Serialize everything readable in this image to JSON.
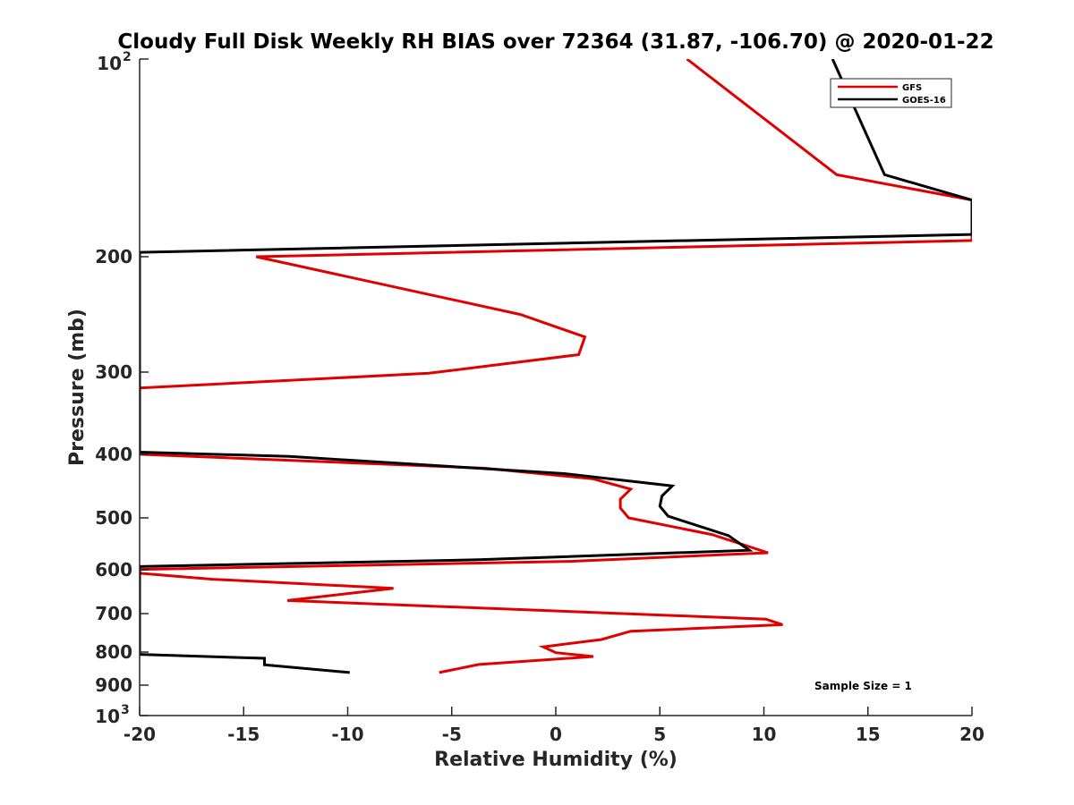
{
  "chart_data": {
    "type": "line",
    "title": "Cloudy Full Disk Weekly RH BIAS over 72364 (31.87, -106.70) @ 2020-01-22",
    "xlabel": "Relative Humidity (%)",
    "ylabel": "Pressure (mb)",
    "xlim": [
      -20,
      20
    ],
    "ylim": [
      100,
      1000
    ],
    "y_scale": "log",
    "y_reversed": true,
    "x_ticks": [
      "-20",
      "-15",
      "-10",
      "-5",
      "0",
      "5",
      "10",
      "15",
      "20"
    ],
    "y_tick_labels": {
      "top_base": "10",
      "top_exp": "2",
      "p200": "200",
      "p300": "300",
      "p400": "400",
      "p500": "500",
      "p600": "600",
      "p700": "700",
      "p800": "800",
      "p900": "900",
      "bottom_base": "10",
      "bottom_exp": "3"
    },
    "legend_position": "top-right",
    "grid": false,
    "annotation": "Sample Size = 1",
    "series": [
      {
        "name": "GFS",
        "color": "#e00000",
        "points": [
          [
            6.3,
            100
          ],
          [
            13.5,
            150
          ],
          [
            20,
            164
          ],
          [
            20,
            189
          ],
          [
            -14.4,
            200
          ],
          [
            -1.7,
            245
          ],
          [
            1.4,
            265
          ],
          [
            1.1,
            282
          ],
          [
            -6.1,
            301
          ],
          [
            -20,
            317
          ],
          [
            -20,
            400
          ],
          [
            -3.4,
            420
          ],
          [
            1.8,
            436
          ],
          [
            3.6,
            452
          ],
          [
            3.1,
            468
          ],
          [
            3.1,
            483
          ],
          [
            3.5,
            500
          ],
          [
            7.5,
            530
          ],
          [
            10.2,
            565
          ],
          [
            0.8,
            582
          ],
          [
            -20,
            599
          ],
          [
            -20,
            607
          ],
          [
            -16.5,
            620
          ],
          [
            -7.8,
            640
          ],
          [
            -12.9,
            668
          ],
          [
            10.1,
            713
          ],
          [
            10.9,
            727
          ],
          [
            3.6,
            744
          ],
          [
            2.2,
            766
          ],
          [
            -0.6,
            786
          ],
          [
            0,
            802
          ],
          [
            1.8,
            813
          ],
          [
            -3.7,
            836
          ],
          [
            -5.6,
            860
          ]
        ]
      },
      {
        "name": "GOES-16",
        "color": "#000000",
        "points": [
          [
            13.3,
            100
          ],
          [
            15.8,
            150
          ],
          [
            20,
            164
          ],
          [
            20,
            185
          ],
          [
            -20,
            197
          ],
          [
            -20,
            397
          ],
          [
            -12.8,
            403
          ],
          [
            0.4,
            428
          ],
          [
            5.6,
            447
          ],
          [
            5.1,
            463
          ],
          [
            5,
            480
          ],
          [
            5.4,
            497
          ],
          [
            8.3,
            532
          ],
          [
            9.3,
            560
          ],
          [
            -3.7,
            579
          ],
          [
            -20,
            593
          ],
          [
            -20,
            807
          ],
          [
            -14,
            818
          ],
          [
            -14,
            837
          ],
          [
            -9.9,
            860
          ]
        ]
      }
    ]
  }
}
